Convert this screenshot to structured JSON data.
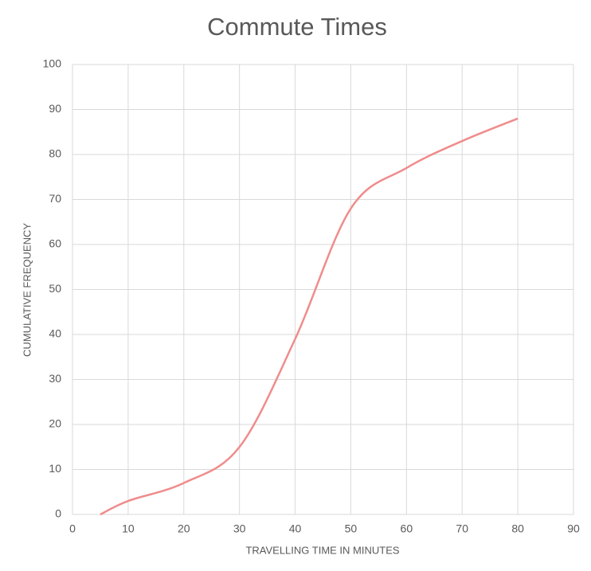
{
  "chart_data": {
    "type": "line",
    "title": "Commute Times",
    "x_label": "TRAVELLING TIME IN MINUTES",
    "y_label": "CUMULATIVE FREQUENCY",
    "x": [
      5,
      10,
      20,
      30,
      40,
      50,
      60,
      70,
      80
    ],
    "series": [
      {
        "name": "Cumulative frequency",
        "color": "#f08c8c",
        "values": [
          0,
          3,
          7,
          15,
          39,
          68,
          77,
          83,
          88
        ]
      }
    ],
    "xlim": [
      0,
      90
    ],
    "xticks": [
      0,
      10,
      20,
      30,
      40,
      50,
      60,
      70,
      80,
      90
    ],
    "ylim": [
      0,
      100
    ],
    "yticks": [
      0,
      10,
      20,
      30,
      40,
      50,
      60,
      70,
      80,
      90,
      100
    ],
    "grid": true,
    "smooth": true
  }
}
